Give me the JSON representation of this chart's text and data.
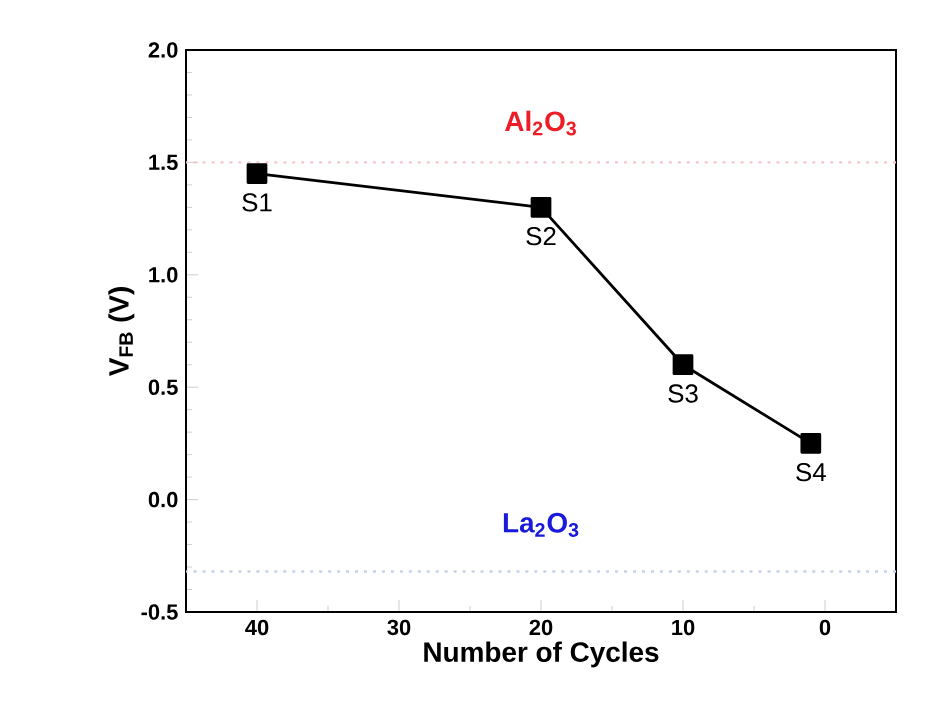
{
  "chart_data": {
    "type": "line",
    "xlabel": "Number of Cycles",
    "ylabel": "V$_{FB}$ (V)",
    "x": [
      40,
      20,
      10,
      1
    ],
    "series": [
      {
        "color": "#000000",
        "values": [
          1.45,
          1.3,
          0.6,
          0.25
        ]
      }
    ],
    "marker": "square",
    "line_style": "solid",
    "xlim": [
      45,
      -5
    ],
    "xticks": [
      40,
      30,
      20,
      10,
      0
    ],
    "ylim": [
      -0.5,
      2.0
    ],
    "yticks": [
      -0.5,
      {
        "value": 0,
        "label": "0.0"
      },
      0.5,
      {
        "value": 1,
        "label": "1.0"
      },
      1.5,
      {
        "value": 2,
        "label": "2.0"
      }
    ],
    "ref_lines": [
      {
        "axis": "y",
        "value": 1.5,
        "color": "#f4c6cc",
        "line_style": "dotted"
      },
      {
        "axis": "y",
        "value": -0.32,
        "color": "#c8d0ec",
        "line_style": "dotted"
      }
    ],
    "annotations": [
      "Al$_{2}$O$_{3}$",
      "La$_{2}$O$_{3}$",
      {
        "text": "S1",
        "x": 40,
        "y": 1.45
      },
      {
        "text": "S2",
        "x": 20,
        "y": 1.3
      },
      {
        "text": "S3",
        "x": 10,
        "y": 0.6
      },
      {
        "text": "S4",
        "x": 1,
        "y": 0.25
      }
    ]
  }
}
